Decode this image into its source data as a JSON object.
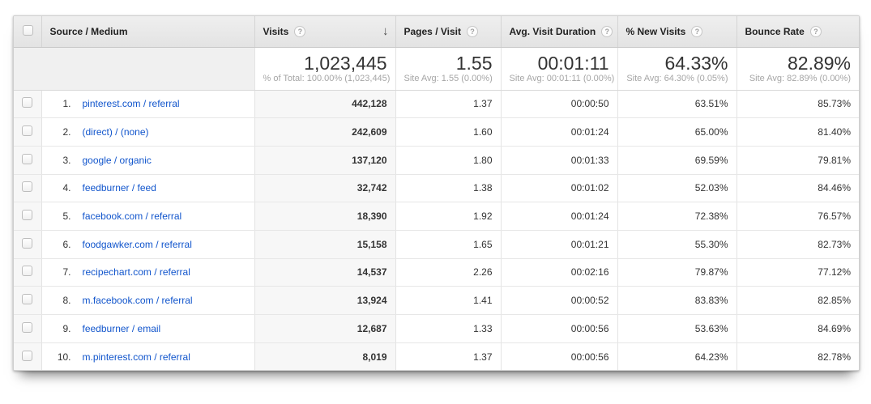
{
  "colors": {
    "link_blue": "#1155cc",
    "header_bg": "#e8e8e8",
    "sorted_column_bg": "#f7f7f7",
    "metric_text": "#333333",
    "sub_text": "#a6a6a6"
  },
  "icons": {
    "help": "?",
    "sort_descending": "↓"
  },
  "table": {
    "columns": [
      {
        "label": "Source / Medium"
      },
      {
        "label": "Visits"
      },
      {
        "label": "Pages / Visit"
      },
      {
        "label": "Avg. Visit Duration"
      },
      {
        "label": "% New Visits"
      },
      {
        "label": "Bounce Rate"
      }
    ],
    "summary": {
      "visits": "1,023,445",
      "visits_sub": "% of Total: 100.00% (1,023,445)",
      "pages": "1.55",
      "pages_sub": "Site Avg: 1.55 (0.00%)",
      "duration": "00:01:11",
      "duration_sub": "Site Avg: 00:01:11 (0.00%)",
      "new_visits": "64.33%",
      "new_visits_sub": "Site Avg: 64.30% (0.05%)",
      "bounce": "82.89%",
      "bounce_sub": "Site Avg: 82.89% (0.00%)"
    },
    "rows": [
      {
        "rank": "1.",
        "source": "pinterest.com / referral",
        "visits": "442,128",
        "pages": "1.37",
        "duration": "00:00:50",
        "new_visits": "63.51%",
        "bounce": "85.73%"
      },
      {
        "rank": "2.",
        "source": "(direct) / (none)",
        "visits": "242,609",
        "pages": "1.60",
        "duration": "00:01:24",
        "new_visits": "65.00%",
        "bounce": "81.40%"
      },
      {
        "rank": "3.",
        "source": "google / organic",
        "visits": "137,120",
        "pages": "1.80",
        "duration": "00:01:33",
        "new_visits": "69.59%",
        "bounce": "79.81%"
      },
      {
        "rank": "4.",
        "source": "feedburner / feed",
        "visits": "32,742",
        "pages": "1.38",
        "duration": "00:01:02",
        "new_visits": "52.03%",
        "bounce": "84.46%"
      },
      {
        "rank": "5.",
        "source": "facebook.com / referral",
        "visits": "18,390",
        "pages": "1.92",
        "duration": "00:01:24",
        "new_visits": "72.38%",
        "bounce": "76.57%"
      },
      {
        "rank": "6.",
        "source": "foodgawker.com / referral",
        "visits": "15,158",
        "pages": "1.65",
        "duration": "00:01:21",
        "new_visits": "55.30%",
        "bounce": "82.73%"
      },
      {
        "rank": "7.",
        "source": "recipechart.com / referral",
        "visits": "14,537",
        "pages": "2.26",
        "duration": "00:02:16",
        "new_visits": "79.87%",
        "bounce": "77.12%"
      },
      {
        "rank": "8.",
        "source": "m.facebook.com / referral",
        "visits": "13,924",
        "pages": "1.41",
        "duration": "00:00:52",
        "new_visits": "83.83%",
        "bounce": "82.85%"
      },
      {
        "rank": "9.",
        "source": "feedburner / email",
        "visits": "12,687",
        "pages": "1.33",
        "duration": "00:00:56",
        "new_visits": "53.63%",
        "bounce": "84.69%"
      },
      {
        "rank": "10.",
        "source": "m.pinterest.com / referral",
        "visits": "8,019",
        "pages": "1.37",
        "duration": "00:00:56",
        "new_visits": "64.23%",
        "bounce": "82.78%"
      }
    ]
  }
}
